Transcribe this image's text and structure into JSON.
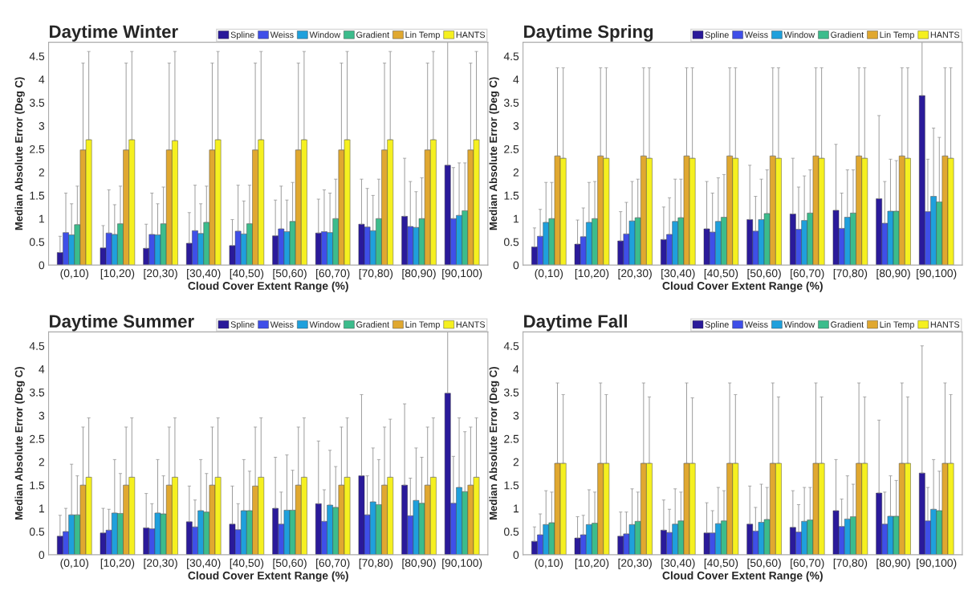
{
  "chart_data": [
    {
      "type": "bar",
      "title": "Daytime Winter",
      "xlabel": "Cloud Cover Extent Range (%)",
      "ylabel": "Median Absolute Error (Deg C)",
      "categories": [
        "(0,10)",
        "[10,20)",
        "[20,30)",
        "[30,40)",
        "[40,50)",
        "[50,60)",
        "[60,70)",
        "[70,80)",
        "[80,90)",
        "[90,100)"
      ],
      "ylim": [
        0,
        4.8
      ],
      "yticks": [
        0,
        0.5,
        1,
        1.5,
        2,
        2.5,
        3,
        3.5,
        4,
        4.5
      ],
      "legend": "top",
      "series": [
        {
          "name": "Spline",
          "color": "#2a1a9a",
          "values": [
            0.27,
            0.37,
            0.36,
            0.47,
            0.42,
            0.63,
            0.69,
            0.88,
            1.05,
            2.15
          ],
          "errors": [
            [
              0.27,
              0.62
            ],
            [
              0.37,
              0.85
            ],
            [
              0.36,
              0.88
            ],
            [
              0.47,
              1.13
            ],
            [
              0.42,
              0.98
            ],
            [
              0.63,
              1.4
            ],
            [
              0.69,
              1.42
            ],
            [
              0.88,
              1.85
            ],
            [
              1.05,
              2.3
            ],
            [
              2.15,
              4.8
            ]
          ]
        },
        {
          "name": "Weiss",
          "color": "#3f4fe8",
          "values": [
            0.7,
            0.69,
            0.66,
            0.74,
            0.73,
            0.78,
            0.72,
            0.82,
            0.83,
            1.0
          ],
          "errors": [
            [
              0.7,
              1.55
            ],
            [
              0.69,
              1.62
            ],
            [
              0.66,
              1.55
            ],
            [
              0.74,
              1.72
            ],
            [
              0.73,
              1.72
            ],
            [
              0.78,
              1.7
            ],
            [
              0.72,
              1.62
            ],
            [
              0.82,
              1.65
            ],
            [
              0.83,
              1.8
            ],
            [
              1.0,
              2.1
            ]
          ]
        },
        {
          "name": "Window",
          "color": "#1fa0dc",
          "values": [
            0.65,
            0.66,
            0.65,
            0.68,
            0.67,
            0.72,
            0.7,
            0.74,
            0.81,
            1.07
          ],
          "errors": [
            [
              0.65,
              1.32
            ],
            [
              0.66,
              1.3
            ],
            [
              0.65,
              1.32
            ],
            [
              0.68,
              1.32
            ],
            [
              0.67,
              1.38
            ],
            [
              0.72,
              1.4
            ],
            [
              0.7,
              1.55
            ],
            [
              0.74,
              1.5
            ],
            [
              0.81,
              1.58
            ],
            [
              1.07,
              2.2
            ]
          ]
        },
        {
          "name": "Gradient",
          "color": "#3cbc8c",
          "values": [
            0.87,
            0.89,
            0.89,
            0.92,
            0.89,
            0.94,
            1.0,
            1.0,
            1.0,
            1.17
          ],
          "errors": [
            [
              0.87,
              1.7
            ],
            [
              0.89,
              1.7
            ],
            [
              0.89,
              1.68
            ],
            [
              0.92,
              1.7
            ],
            [
              0.89,
              1.72
            ],
            [
              0.94,
              1.78
            ],
            [
              1.0,
              1.85
            ],
            [
              1.0,
              1.85
            ],
            [
              1.0,
              1.88
            ],
            [
              1.17,
              2.2
            ]
          ]
        },
        {
          "name": "Lin Temp",
          "color": "#e0a830",
          "values": [
            2.48,
            2.48,
            2.48,
            2.48,
            2.48,
            2.48,
            2.48,
            2.48,
            2.48,
            2.48
          ],
          "errors": [
            [
              2.48,
              4.35
            ],
            [
              2.48,
              4.35
            ],
            [
              2.48,
              4.35
            ],
            [
              2.48,
              4.35
            ],
            [
              2.48,
              4.35
            ],
            [
              2.48,
              4.35
            ],
            [
              2.48,
              4.35
            ],
            [
              2.48,
              4.35
            ],
            [
              2.48,
              4.35
            ],
            [
              2.48,
              4.35
            ]
          ]
        },
        {
          "name": "HANTS",
          "color": "#f5f020",
          "values": [
            2.7,
            2.7,
            2.68,
            2.7,
            2.7,
            2.7,
            2.7,
            2.7,
            2.7,
            2.7
          ],
          "errors": [
            [
              2.7,
              4.6
            ],
            [
              2.7,
              4.6
            ],
            [
              2.68,
              4.6
            ],
            [
              2.7,
              4.6
            ],
            [
              2.7,
              4.6
            ],
            [
              2.7,
              4.6
            ],
            [
              2.7,
              4.6
            ],
            [
              2.7,
              4.6
            ],
            [
              2.7,
              4.6
            ],
            [
              2.7,
              4.6
            ]
          ]
        }
      ]
    },
    {
      "type": "bar",
      "title": "Daytime Spring",
      "xlabel": "Cloud Cover Extent Range (%)",
      "ylabel": "Median Absolute Error (Deg C)",
      "categories": [
        "(0,10)",
        "[10,20)",
        "[20,30)",
        "[30,40)",
        "[40,50)",
        "[50,60)",
        "[60,70)",
        "[70,80)",
        "[80,90)",
        "[90,100)"
      ],
      "ylim": [
        0,
        4.8
      ],
      "yticks": [
        0,
        0.5,
        1,
        1.5,
        2,
        2.5,
        3,
        3.5,
        4,
        4.5
      ],
      "legend": "top",
      "series": [
        {
          "name": "Spline",
          "color": "#2a1a9a",
          "values": [
            0.39,
            0.45,
            0.52,
            0.55,
            0.78,
            0.98,
            1.1,
            1.18,
            1.43,
            3.65
          ],
          "errors": [
            [
              0.39,
              0.8
            ],
            [
              0.45,
              0.97
            ],
            [
              0.52,
              1.15
            ],
            [
              0.55,
              1.25
            ],
            [
              0.78,
              1.8
            ],
            [
              0.98,
              2.15
            ],
            [
              1.1,
              2.3
            ],
            [
              1.18,
              2.6
            ],
            [
              1.43,
              3.22
            ],
            [
              3.65,
              4.8
            ]
          ]
        },
        {
          "name": "Weiss",
          "color": "#3f4fe8",
          "values": [
            0.62,
            0.61,
            0.67,
            0.66,
            0.71,
            0.73,
            0.77,
            0.79,
            0.9,
            1.15
          ],
          "errors": [
            [
              0.62,
              1.2
            ],
            [
              0.61,
              1.23
            ],
            [
              0.67,
              1.35
            ],
            [
              0.66,
              1.45
            ],
            [
              0.71,
              1.55
            ],
            [
              0.73,
              1.48
            ],
            [
              0.77,
              1.68
            ],
            [
              0.79,
              1.55
            ],
            [
              0.9,
              1.8
            ],
            [
              1.15,
              2.28
            ]
          ]
        },
        {
          "name": "Window",
          "color": "#1fa0dc",
          "values": [
            0.92,
            0.92,
            0.95,
            0.94,
            0.94,
            0.98,
            0.96,
            1.03,
            1.16,
            1.48
          ],
          "errors": [
            [
              0.92,
              1.78
            ],
            [
              0.92,
              1.78
            ],
            [
              0.95,
              1.8
            ],
            [
              0.94,
              1.85
            ],
            [
              0.94,
              1.88
            ],
            [
              0.98,
              1.85
            ],
            [
              0.96,
              1.92
            ],
            [
              1.03,
              2.05
            ],
            [
              1.16,
              2.28
            ],
            [
              1.48,
              2.95
            ]
          ]
        },
        {
          "name": "Gradient",
          "color": "#3cbc8c",
          "values": [
            1.0,
            1.0,
            1.02,
            1.02,
            1.03,
            1.11,
            1.12,
            1.12,
            1.16,
            1.36
          ],
          "errors": [
            [
              1.0,
              1.78
            ],
            [
              1.0,
              1.8
            ],
            [
              1.02,
              1.85
            ],
            [
              1.02,
              1.85
            ],
            [
              1.03,
              1.95
            ],
            [
              1.11,
              2.05
            ],
            [
              1.12,
              2.05
            ],
            [
              1.12,
              2.05
            ],
            [
              1.16,
              2.25
            ],
            [
              1.36,
              2.75
            ]
          ]
        },
        {
          "name": "Lin Temp",
          "color": "#e0a830",
          "values": [
            2.35,
            2.35,
            2.35,
            2.35,
            2.35,
            2.35,
            2.35,
            2.35,
            2.35,
            2.35
          ],
          "errors": [
            [
              2.35,
              4.25
            ],
            [
              2.35,
              4.25
            ],
            [
              2.35,
              4.25
            ],
            [
              2.35,
              4.25
            ],
            [
              2.35,
              4.25
            ],
            [
              2.35,
              4.25
            ],
            [
              2.35,
              4.25
            ],
            [
              2.35,
              4.25
            ],
            [
              2.35,
              4.25
            ],
            [
              2.35,
              4.25
            ]
          ]
        },
        {
          "name": "HANTS",
          "color": "#f5f020",
          "values": [
            2.3,
            2.3,
            2.3,
            2.3,
            2.3,
            2.3,
            2.3,
            2.3,
            2.3,
            2.3
          ],
          "errors": [
            [
              2.3,
              4.25
            ],
            [
              2.3,
              4.25
            ],
            [
              2.3,
              4.25
            ],
            [
              2.3,
              4.25
            ],
            [
              2.3,
              4.25
            ],
            [
              2.3,
              4.25
            ],
            [
              2.3,
              4.25
            ],
            [
              2.3,
              4.25
            ],
            [
              2.3,
              4.25
            ],
            [
              2.3,
              4.25
            ]
          ]
        }
      ]
    },
    {
      "type": "bar",
      "title": "Daytime Summer",
      "xlabel": "Cloud Cover Extent Range (%)",
      "ylabel": "Median Absolute Error (Deg C)",
      "categories": [
        "(0,10)",
        "[10,20)",
        "[20,30)",
        "[30,40)",
        "[40,50)",
        "[50,60)",
        "[60,70)",
        "[70,80)",
        "[80,90)",
        "[90,100)"
      ],
      "ylim": [
        0,
        4.8
      ],
      "yticks": [
        0,
        0.5,
        1,
        1.5,
        2,
        2.5,
        3,
        3.5,
        4,
        4.5
      ],
      "legend": "top",
      "series": [
        {
          "name": "Spline",
          "color": "#2a1a9a",
          "values": [
            0.4,
            0.47,
            0.58,
            0.71,
            0.66,
            1.0,
            1.1,
            1.7,
            1.5,
            3.48
          ],
          "errors": [
            [
              0.4,
              0.85
            ],
            [
              0.47,
              1.0
            ],
            [
              0.58,
              1.32
            ],
            [
              0.71,
              1.48
            ],
            [
              0.66,
              1.48
            ],
            [
              1.0,
              2.1
            ],
            [
              1.1,
              2.45
            ],
            [
              1.7,
              3.45
            ],
            [
              1.5,
              3.25
            ],
            [
              3.48,
              4.8
            ]
          ]
        },
        {
          "name": "Weiss",
          "color": "#3f4fe8",
          "values": [
            0.5,
            0.53,
            0.56,
            0.6,
            0.54,
            0.66,
            0.72,
            0.86,
            0.84,
            1.11
          ],
          "errors": [
            [
              0.5,
              1.0
            ],
            [
              0.53,
              0.98
            ],
            [
              0.56,
              1.1
            ],
            [
              0.6,
              1.18
            ],
            [
              0.54,
              1.1
            ],
            [
              0.66,
              1.35
            ],
            [
              0.72,
              1.4
            ],
            [
              0.86,
              1.7
            ],
            [
              0.84,
              1.65
            ],
            [
              1.11,
              2.12
            ]
          ]
        },
        {
          "name": "Window",
          "color": "#1fa0dc",
          "values": [
            0.86,
            0.9,
            0.9,
            0.95,
            0.95,
            0.96,
            1.07,
            1.14,
            1.17,
            1.45
          ],
          "errors": [
            [
              0.86,
              1.95
            ],
            [
              0.9,
              2.05
            ],
            [
              0.9,
              2.05
            ],
            [
              0.95,
              2.05
            ],
            [
              0.95,
              2.05
            ],
            [
              0.96,
              2.15
            ],
            [
              1.07,
              2.25
            ],
            [
              1.14,
              2.3
            ],
            [
              1.17,
              2.3
            ],
            [
              1.45,
              2.95
            ]
          ]
        },
        {
          "name": "Gradient",
          "color": "#3cbc8c",
          "values": [
            0.86,
            0.89,
            0.88,
            0.92,
            0.95,
            0.96,
            1.02,
            1.08,
            1.11,
            1.36
          ],
          "errors": [
            [
              0.86,
              1.7
            ],
            [
              0.89,
              1.75
            ],
            [
              0.88,
              1.7
            ],
            [
              0.92,
              1.75
            ],
            [
              0.95,
              1.8
            ],
            [
              0.96,
              1.82
            ],
            [
              1.02,
              1.9
            ],
            [
              1.08,
              2.05
            ],
            [
              1.11,
              2.1
            ],
            [
              1.36,
              2.65
            ]
          ]
        },
        {
          "name": "Lin Temp",
          "color": "#e0a830",
          "values": [
            1.5,
            1.5,
            1.5,
            1.5,
            1.48,
            1.5,
            1.5,
            1.5,
            1.5,
            1.5
          ],
          "errors": [
            [
              1.5,
              2.75
            ],
            [
              1.5,
              2.75
            ],
            [
              1.5,
              2.75
            ],
            [
              1.5,
              2.75
            ],
            [
              1.48,
              2.75
            ],
            [
              1.5,
              2.75
            ],
            [
              1.5,
              2.75
            ],
            [
              1.5,
              2.75
            ],
            [
              1.5,
              2.75
            ],
            [
              1.5,
              2.75
            ]
          ]
        },
        {
          "name": "HANTS",
          "color": "#f5f020",
          "values": [
            1.67,
            1.67,
            1.67,
            1.67,
            1.67,
            1.67,
            1.67,
            1.67,
            1.67,
            1.67
          ],
          "errors": [
            [
              1.67,
              2.95
            ],
            [
              1.67,
              2.95
            ],
            [
              1.67,
              2.95
            ],
            [
              1.67,
              2.95
            ],
            [
              1.67,
              2.95
            ],
            [
              1.67,
              2.95
            ],
            [
              1.67,
              2.95
            ],
            [
              1.67,
              2.92
            ],
            [
              1.67,
              2.95
            ],
            [
              1.67,
              2.95
            ]
          ]
        }
      ]
    },
    {
      "type": "bar",
      "title": "Daytime Fall",
      "xlabel": "Cloud Cover Extent Range (%)",
      "ylabel": "Median Absolute Error (Deg C)",
      "categories": [
        "(0,10)",
        "[10,20)",
        "[20,30)",
        "[30,40)",
        "[40,50)",
        "[50,60)",
        "[60,70)",
        "[70,80)",
        "[80,90)",
        "[90,100)"
      ],
      "ylim": [
        0,
        4.8
      ],
      "yticks": [
        0,
        0.5,
        1,
        1.5,
        2,
        2.5,
        3,
        3.5,
        4,
        4.5
      ],
      "legend": "top",
      "series": [
        {
          "name": "Spline",
          "color": "#2a1a9a",
          "values": [
            0.29,
            0.36,
            0.4,
            0.53,
            0.47,
            0.66,
            0.59,
            0.95,
            1.33,
            1.76
          ],
          "errors": [
            [
              0.29,
              0.6
            ],
            [
              0.36,
              0.82
            ],
            [
              0.4,
              0.92
            ],
            [
              0.53,
              1.18
            ],
            [
              0.47,
              1.12
            ],
            [
              0.66,
              1.48
            ],
            [
              0.59,
              1.38
            ],
            [
              0.95,
              2.05
            ],
            [
              1.33,
              2.9
            ],
            [
              1.76,
              4.5
            ]
          ]
        },
        {
          "name": "Weiss",
          "color": "#3f4fe8",
          "values": [
            0.43,
            0.43,
            0.45,
            0.48,
            0.47,
            0.51,
            0.49,
            0.61,
            0.66,
            0.73
          ],
          "errors": [
            [
              0.43,
              0.88
            ],
            [
              0.43,
              0.85
            ],
            [
              0.45,
              0.92
            ],
            [
              0.48,
              0.98
            ],
            [
              0.47,
              0.95
            ],
            [
              0.51,
              1.02
            ],
            [
              0.49,
              1.08
            ],
            [
              0.61,
              1.2
            ],
            [
              0.66,
              1.35
            ],
            [
              0.73,
              1.45
            ]
          ]
        },
        {
          "name": "Window",
          "color": "#1fa0dc",
          "values": [
            0.65,
            0.65,
            0.65,
            0.66,
            0.67,
            0.7,
            0.72,
            0.77,
            0.83,
            0.98
          ],
          "errors": [
            [
              0.65,
              1.38
            ],
            [
              0.65,
              1.4
            ],
            [
              0.65,
              1.42
            ],
            [
              0.66,
              1.42
            ],
            [
              0.67,
              1.45
            ],
            [
              0.7,
              1.52
            ],
            [
              0.72,
              1.45
            ],
            [
              0.77,
              1.7
            ],
            [
              0.83,
              1.7
            ],
            [
              0.98,
              2.05
            ]
          ]
        },
        {
          "name": "Gradient",
          "color": "#3cbc8c",
          "values": [
            0.69,
            0.68,
            0.72,
            0.73,
            0.73,
            0.76,
            0.75,
            0.82,
            0.83,
            0.95
          ],
          "errors": [
            [
              0.69,
              1.35
            ],
            [
              0.68,
              1.35
            ],
            [
              0.72,
              1.35
            ],
            [
              0.73,
              1.35
            ],
            [
              0.73,
              1.38
            ],
            [
              0.76,
              1.45
            ],
            [
              0.75,
              1.45
            ],
            [
              0.82,
              1.52
            ],
            [
              0.83,
              1.6
            ],
            [
              0.95,
              1.8
            ]
          ]
        },
        {
          "name": "Lin Temp",
          "color": "#e0a830",
          "values": [
            1.97,
            1.97,
            1.97,
            1.97,
            1.97,
            1.97,
            1.97,
            1.97,
            1.97,
            1.97
          ],
          "errors": [
            [
              1.97,
              3.7
            ],
            [
              1.97,
              3.7
            ],
            [
              1.97,
              3.7
            ],
            [
              1.97,
              3.7
            ],
            [
              1.97,
              3.7
            ],
            [
              1.97,
              3.7
            ],
            [
              1.97,
              3.7
            ],
            [
              1.97,
              3.7
            ],
            [
              1.97,
              3.7
            ],
            [
              1.97,
              3.7
            ]
          ]
        },
        {
          "name": "HANTS",
          "color": "#f5f020",
          "values": [
            1.97,
            1.97,
            1.97,
            1.97,
            1.97,
            1.97,
            1.97,
            1.97,
            1.97,
            1.97
          ],
          "errors": [
            [
              1.97,
              3.45
            ],
            [
              1.97,
              3.45
            ],
            [
              1.97,
              3.4
            ],
            [
              1.97,
              3.38
            ],
            [
              1.97,
              3.45
            ],
            [
              1.97,
              3.4
            ],
            [
              1.97,
              3.4
            ],
            [
              1.97,
              3.4
            ],
            [
              1.97,
              3.4
            ],
            [
              1.97,
              3.45
            ]
          ]
        }
      ]
    }
  ]
}
